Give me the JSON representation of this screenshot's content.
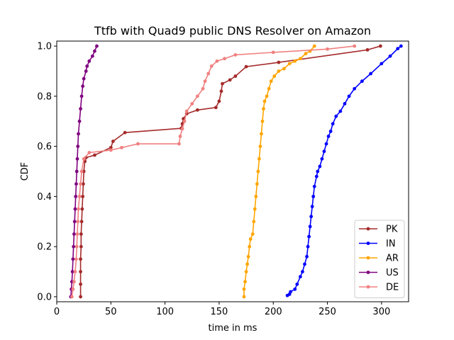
{
  "chart_data": {
    "type": "line",
    "title": "Ttfb with Quad9 public DNS Resolver on Amazon",
    "xlabel": "time in ms",
    "ylabel": "CDF",
    "xlim": [
      0,
      325
    ],
    "ylim": [
      -0.02,
      1.02
    ],
    "xticks": [
      0,
      50,
      100,
      150,
      200,
      250,
      300
    ],
    "yticks": [
      0.0,
      0.2,
      0.4,
      0.6,
      0.8,
      1.0
    ],
    "xtick_labels": [
      "0",
      "50",
      "100",
      "150",
      "200",
      "250",
      "300"
    ],
    "ytick_labels": [
      "0.0",
      "0.2",
      "0.4",
      "0.6",
      "0.8",
      "1.0"
    ],
    "grid": false,
    "legend_position": "lower-right",
    "series": [
      {
        "name": "PK",
        "color": "#a52a2a",
        "points": [
          [
            22,
            0.0
          ],
          [
            22,
            0.05
          ],
          [
            22,
            0.1
          ],
          [
            22,
            0.15
          ],
          [
            22.5,
            0.2
          ],
          [
            22.5,
            0.25
          ],
          [
            23,
            0.3
          ],
          [
            23.5,
            0.35
          ],
          [
            24,
            0.4
          ],
          [
            24.5,
            0.45
          ],
          [
            25,
            0.5
          ],
          [
            26,
            0.54
          ],
          [
            27,
            0.555
          ],
          [
            35,
            0.565
          ],
          [
            50,
            0.595
          ],
          [
            52,
            0.62
          ],
          [
            63,
            0.655
          ],
          [
            115,
            0.672
          ],
          [
            116,
            0.69
          ],
          [
            117,
            0.71
          ],
          [
            120,
            0.73
          ],
          [
            130,
            0.745
          ],
          [
            147,
            0.755
          ],
          [
            150,
            0.78
          ],
          [
            152,
            0.82
          ],
          [
            153,
            0.85
          ],
          [
            160,
            0.865
          ],
          [
            165,
            0.88
          ],
          [
            175,
            0.918
          ],
          [
            205,
            0.935
          ],
          [
            287,
            0.985
          ],
          [
            299,
            1.0
          ]
        ]
      },
      {
        "name": "IN",
        "color": "#0000ff",
        "points": [
          [
            213,
            0.005
          ],
          [
            215,
            0.01
          ],
          [
            216,
            0.02
          ],
          [
            220,
            0.03
          ],
          [
            222,
            0.05
          ],
          [
            225,
            0.08
          ],
          [
            227,
            0.1
          ],
          [
            229,
            0.13
          ],
          [
            231,
            0.16
          ],
          [
            232,
            0.2
          ],
          [
            233,
            0.24
          ],
          [
            234,
            0.28
          ],
          [
            235,
            0.32
          ],
          [
            236,
            0.36
          ],
          [
            237,
            0.4
          ],
          [
            238,
            0.44
          ],
          [
            240,
            0.48
          ],
          [
            241,
            0.5
          ],
          [
            243,
            0.52
          ],
          [
            245,
            0.55
          ],
          [
            247,
            0.58
          ],
          [
            249,
            0.61
          ],
          [
            251,
            0.64
          ],
          [
            253,
            0.66
          ],
          [
            255,
            0.69
          ],
          [
            258,
            0.72
          ],
          [
            262,
            0.74
          ],
          [
            266,
            0.77
          ],
          [
            270,
            0.8
          ],
          [
            275,
            0.83
          ],
          [
            282,
            0.86
          ],
          [
            290,
            0.89
          ],
          [
            300,
            0.93
          ],
          [
            308,
            0.96
          ],
          [
            315,
            0.99
          ],
          [
            318,
            1.0
          ]
        ]
      },
      {
        "name": "AR",
        "color": "#ffa500",
        "points": [
          [
            173,
            0.0
          ],
          [
            173,
            0.03
          ],
          [
            174,
            0.06
          ],
          [
            175,
            0.1
          ],
          [
            176,
            0.13
          ],
          [
            177,
            0.16
          ],
          [
            178,
            0.2
          ],
          [
            179,
            0.23
          ],
          [
            181,
            0.25
          ],
          [
            182,
            0.3
          ],
          [
            183,
            0.35
          ],
          [
            184,
            0.4
          ],
          [
            185,
            0.45
          ],
          [
            186,
            0.5
          ],
          [
            187,
            0.55
          ],
          [
            188,
            0.6
          ],
          [
            189,
            0.65
          ],
          [
            190,
            0.7
          ],
          [
            191,
            0.75
          ],
          [
            192,
            0.78
          ],
          [
            194,
            0.8
          ],
          [
            196,
            0.83
          ],
          [
            198,
            0.86
          ],
          [
            201,
            0.88
          ],
          [
            205,
            0.9
          ],
          [
            210,
            0.91
          ],
          [
            215,
            0.93
          ],
          [
            220,
            0.94
          ],
          [
            225,
            0.95
          ],
          [
            230,
            0.97
          ],
          [
            234,
            0.98
          ],
          [
            238,
            1.0
          ]
        ]
      },
      {
        "name": "US",
        "color": "#800080",
        "points": [
          [
            13,
            0.0
          ],
          [
            13.5,
            0.03
          ],
          [
            14,
            0.06
          ],
          [
            14.5,
            0.1
          ],
          [
            15,
            0.15
          ],
          [
            15.5,
            0.2
          ],
          [
            16,
            0.25
          ],
          [
            16.5,
            0.3
          ],
          [
            17,
            0.35
          ],
          [
            17.5,
            0.4
          ],
          [
            18,
            0.45
          ],
          [
            18.5,
            0.5
          ],
          [
            19,
            0.55
          ],
          [
            19.5,
            0.6
          ],
          [
            20,
            0.65
          ],
          [
            21,
            0.7
          ],
          [
            22,
            0.75
          ],
          [
            23,
            0.8
          ],
          [
            24,
            0.84
          ],
          [
            25,
            0.87
          ],
          [
            27,
            0.9
          ],
          [
            28,
            0.92
          ],
          [
            30,
            0.94
          ],
          [
            33,
            0.96
          ],
          [
            35,
            0.98
          ],
          [
            37,
            1.0
          ]
        ]
      },
      {
        "name": "DE",
        "color": "#f08080",
        "points": [
          [
            14,
            0.0
          ],
          [
            15,
            0.03
          ],
          [
            16,
            0.06
          ],
          [
            17,
            0.1
          ],
          [
            18,
            0.15
          ],
          [
            18.5,
            0.2
          ],
          [
            19,
            0.25
          ],
          [
            19.5,
            0.3
          ],
          [
            20,
            0.35
          ],
          [
            21,
            0.4
          ],
          [
            22,
            0.45
          ],
          [
            23,
            0.5
          ],
          [
            25,
            0.55
          ],
          [
            30,
            0.575
          ],
          [
            50,
            0.585
          ],
          [
            60,
            0.595
          ],
          [
            75,
            0.61
          ],
          [
            113,
            0.61
          ],
          [
            114,
            0.64
          ],
          [
            116,
            0.67
          ],
          [
            118,
            0.7
          ],
          [
            120,
            0.74
          ],
          [
            125,
            0.77
          ],
          [
            130,
            0.8
          ],
          [
            135,
            0.83
          ],
          [
            137,
            0.86
          ],
          [
            140,
            0.89
          ],
          [
            143,
            0.92
          ],
          [
            148,
            0.94
          ],
          [
            155,
            0.95
          ],
          [
            165,
            0.965
          ],
          [
            200,
            0.975
          ],
          [
            250,
            0.988
          ],
          [
            275,
            1.0
          ]
        ]
      }
    ]
  }
}
